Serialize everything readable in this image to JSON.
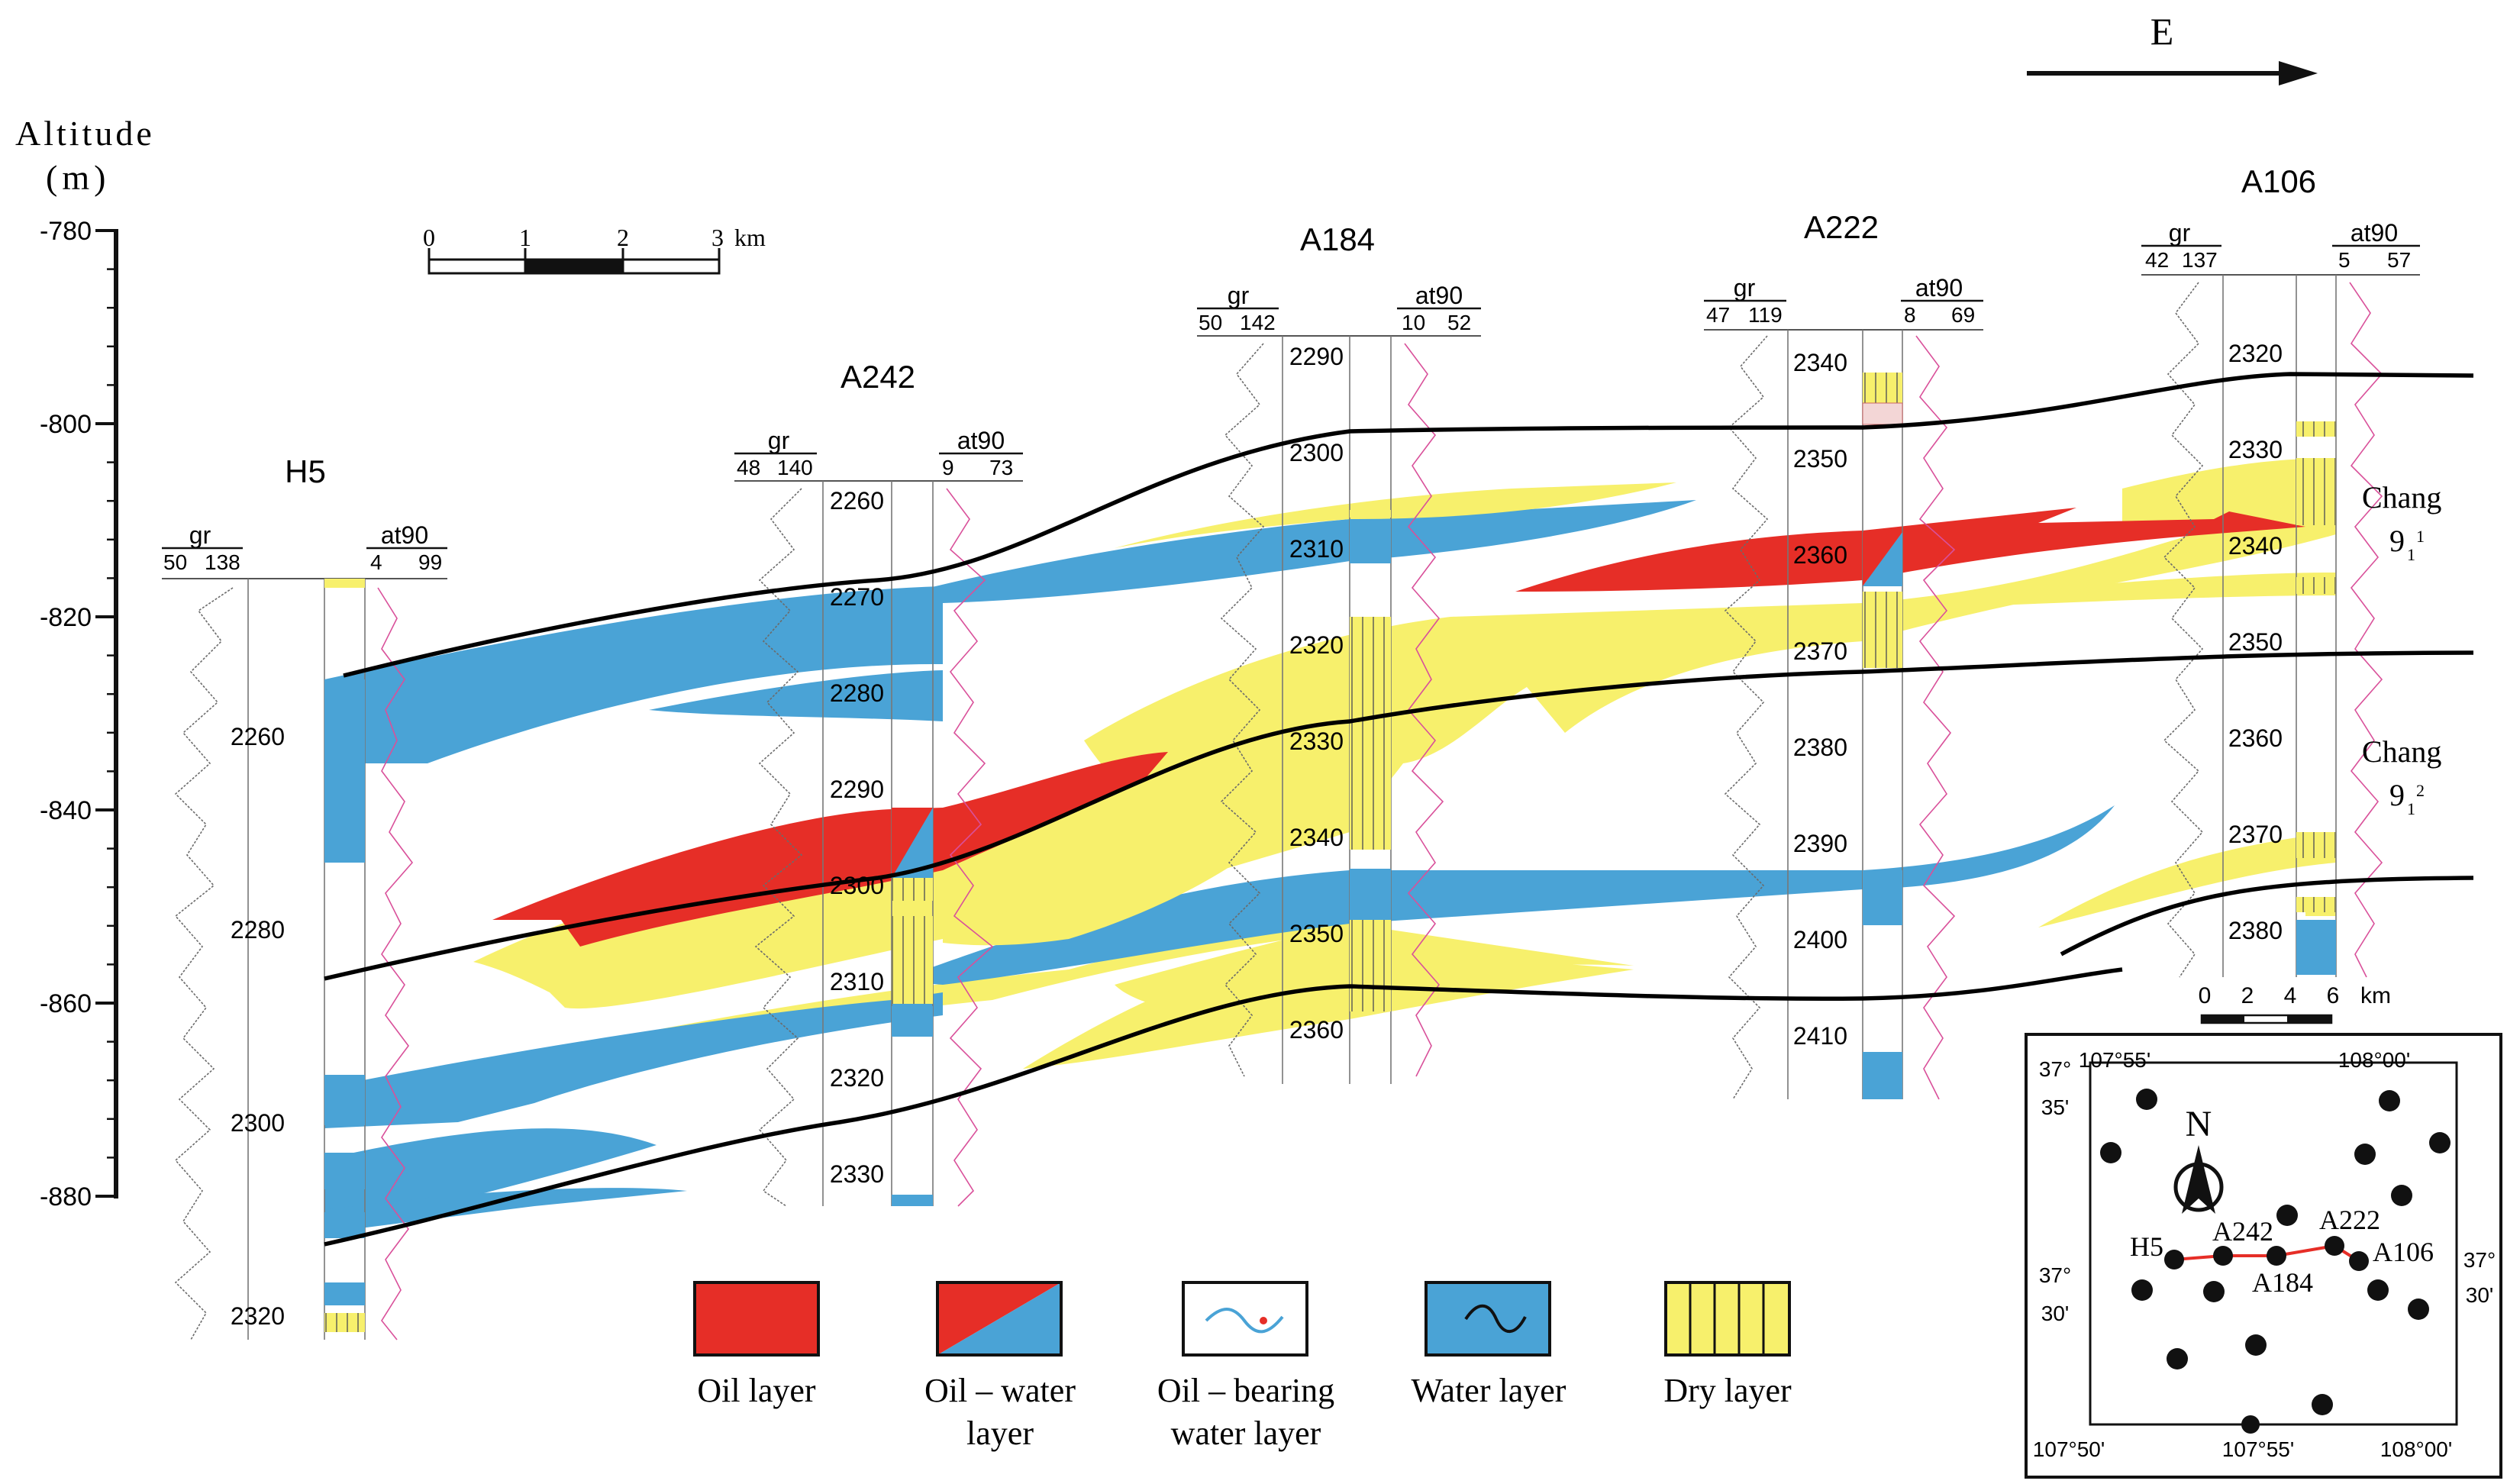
{
  "direction": {
    "label": "E"
  },
  "yaxis": {
    "title_line1": "Altitude",
    "title_line2": "(m)",
    "ticks": [
      "-780",
      "-800",
      "-820",
      "-840",
      "-860",
      "-880"
    ]
  },
  "scalebar_main": {
    "ticks": [
      "0",
      "1",
      "2",
      "3"
    ],
    "unit": "km"
  },
  "wells": [
    {
      "id": "H5",
      "name": "H5",
      "gr_label": "gr",
      "gr_range": [
        "50",
        "138"
      ],
      "at_label": "at90",
      "at_range": [
        "4",
        "99"
      ],
      "depths": [
        "2260",
        "2280",
        "2300",
        "2320"
      ]
    },
    {
      "id": "A242",
      "name": "A242",
      "gr_label": "gr",
      "gr_range": [
        "48",
        "140"
      ],
      "at_label": "at90",
      "at_range": [
        "9",
        "73"
      ],
      "depths": [
        "2260",
        "2270",
        "2280",
        "2290",
        "2300",
        "2310",
        "2320",
        "2330"
      ]
    },
    {
      "id": "A184",
      "name": "A184",
      "gr_label": "gr",
      "gr_range": [
        "50",
        "142"
      ],
      "at_label": "at90",
      "at_range": [
        "10",
        "52"
      ],
      "depths": [
        "2290",
        "2300",
        "2310",
        "2320",
        "2330",
        "2340",
        "2350",
        "2360"
      ]
    },
    {
      "id": "A222",
      "name": "A222",
      "gr_label": "gr",
      "gr_range": [
        "47",
        "119"
      ],
      "at_label": "at90",
      "at_range": [
        "8",
        "69"
      ],
      "depths": [
        "2340",
        "2350",
        "2360",
        "2370",
        "2380",
        "2390",
        "2400",
        "2410"
      ]
    },
    {
      "id": "A106",
      "name": "A106",
      "gr_label": "gr",
      "gr_range": [
        "42",
        "137"
      ],
      "at_label": "at90",
      "at_range": [
        "5",
        "57"
      ],
      "depths": [
        "2320",
        "2330",
        "2340",
        "2350",
        "2360",
        "2370",
        "2380"
      ]
    }
  ],
  "zones": [
    {
      "name": "Chang",
      "sub": "9",
      "sub1": "1",
      "sup": "1"
    },
    {
      "name": "Chang",
      "sub": "9",
      "sub1": "1",
      "sup": "2"
    }
  ],
  "legend": [
    {
      "key": "oil",
      "line1": "Oil layer",
      "line2": ""
    },
    {
      "key": "oilwater",
      "line1": "Oil – water",
      "line2": "layer"
    },
    {
      "key": "oilbearing",
      "line1": "Oil – bearing",
      "line2": "water layer"
    },
    {
      "key": "water",
      "line1": "Water layer",
      "line2": ""
    },
    {
      "key": "dry",
      "line1": "Dry layer",
      "line2": ""
    }
  ],
  "colors": {
    "oil": "#e62e27",
    "water": "#4aa3d6",
    "dry": "#f7f06c"
  },
  "inset": {
    "scale_ticks": [
      "0",
      "2",
      "4",
      "6"
    ],
    "scale_unit": "km",
    "north": "N",
    "top_lon": [
      "107°55'",
      "108°00'"
    ],
    "bottom_lon": [
      "107°50'",
      "107°55'",
      "108°00'"
    ],
    "left_lat": [
      {
        "deg": "37°",
        "min": "35'"
      },
      {
        "deg": "37°",
        "min": "30'"
      }
    ],
    "right_lat": {
      "deg": "37°",
      "min": "30'"
    },
    "well_labels": [
      "H5",
      "A242",
      "A184",
      "A222",
      "A106"
    ]
  }
}
